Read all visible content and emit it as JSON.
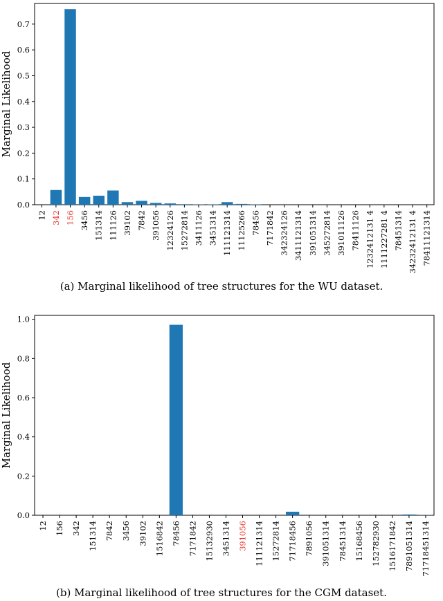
{
  "chart_data": [
    {
      "type": "bar",
      "ylabel": "Marginal Likelihood",
      "ylim": [
        0,
        0.78
      ],
      "yticks": [
        "0.0",
        "0.1",
        "0.2",
        "0.3",
        "0.4",
        "0.5",
        "0.6",
        "0.7"
      ],
      "grid": false,
      "bar_color": "#1f77b4",
      "highlight_color": "#e8312a",
      "highlighted_categories": [
        "342",
        "156"
      ],
      "categories": [
        "12",
        "342",
        "156",
        "3456",
        "151314",
        "111126",
        "39102",
        "7842",
        "391056",
        "12324126",
        "15272814",
        "3411126",
        "3451314",
        "111121314",
        "11125266",
        "78456",
        "7171842",
        "342324126",
        "3411121314",
        "391051314",
        "345272814",
        "391011126",
        "78411126",
        "1232412131 4",
        "1111227281 4",
        "78451314",
        "34232412131 4",
        "78411121314"
      ],
      "values": [
        0.0,
        0.057,
        0.758,
        0.03,
        0.035,
        0.055,
        0.01,
        0.015,
        0.007,
        0.005,
        0.002,
        0.001,
        0.001,
        0.01,
        0.003,
        0.001,
        0.0,
        0.0,
        0.0,
        0.0,
        0.0,
        0.0,
        0.0,
        0.0,
        0.0,
        0.0,
        0.0,
        0.0
      ]
    },
    {
      "type": "bar",
      "ylabel": "Marginal Likelihood",
      "ylim": [
        0,
        1.02
      ],
      "yticks": [
        "0.0",
        "0.2",
        "0.4",
        "0.6",
        "0.8",
        "1.0"
      ],
      "grid": false,
      "bar_color": "#1f77b4",
      "highlight_color": "#e8312a",
      "highlighted_categories": [
        "391056"
      ],
      "categories": [
        "12",
        "156",
        "342",
        "151314",
        "7842",
        "3456",
        "39102",
        "1516842",
        "78456",
        "7171842",
        "15132930",
        "3451314",
        "391056",
        "111121314",
        "15272814",
        "71718456",
        "7891056",
        "391051314",
        "78451314",
        "15168456",
        "152782930",
        "1516171842",
        "7891051314",
        "71718451314"
      ],
      "values": [
        0.0,
        0.0,
        0.0,
        0.0,
        0.0,
        0.0,
        0.0,
        0.0,
        0.972,
        0.0,
        0.0,
        0.0,
        0.0,
        0.0,
        0.0,
        0.018,
        0.0,
        0.0,
        0.0,
        0.0,
        0.0,
        0.0,
        0.004,
        0.002
      ]
    }
  ],
  "captions": {
    "a": "(a) Marginal likelihood of tree structures for the WU dataset.",
    "b": "(b) Marginal likelihood of tree structures for the CGM dataset."
  }
}
